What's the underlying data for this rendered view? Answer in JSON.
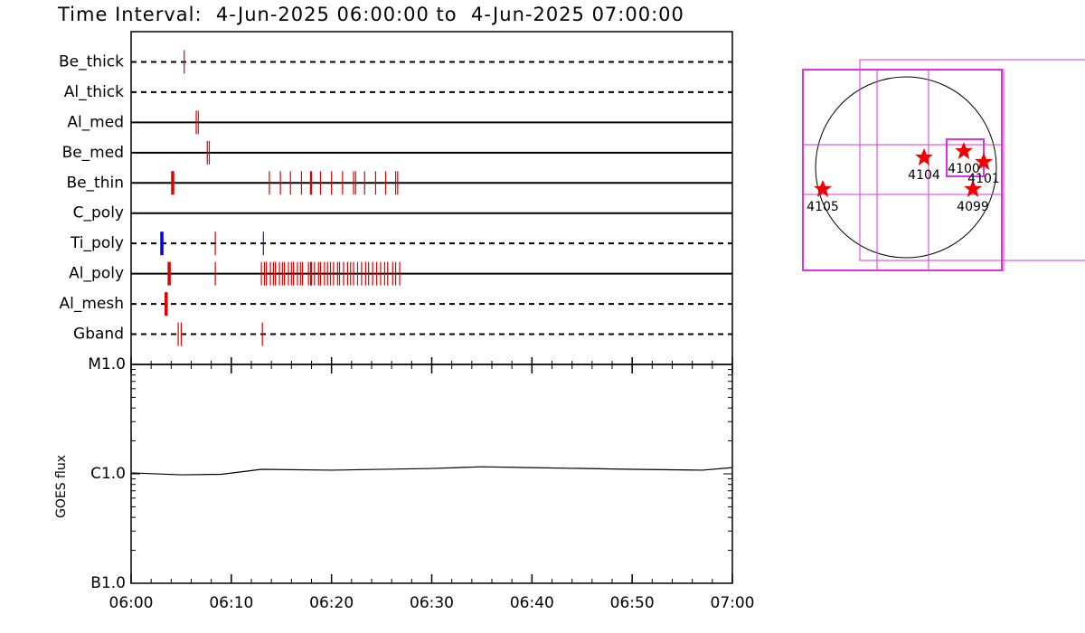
{
  "chart_data": [
    {
      "type": "event",
      "title": "Time Interval:  4-Jun-2025 06:00:00 to  4-Jun-2025 07:00:00",
      "xlim": [
        0,
        60
      ],
      "rows": [
        {
          "name": "Be_thick",
          "dashed": true,
          "color": "#e00000",
          "events": [
            5.3
          ]
        },
        {
          "name": "Al_thick",
          "dashed": true,
          "color": "#e00000",
          "events": []
        },
        {
          "name": "Al_med",
          "dashed": false,
          "color": "#e00000",
          "events": [
            6.5,
            6.7
          ]
        },
        {
          "name": "Be_med",
          "dashed": false,
          "color": "#e00000",
          "events": [
            7.6,
            7.8
          ]
        },
        {
          "name": "Be_thin",
          "dashed": false,
          "color": "#e00000",
          "events": [
            {
              "t": 4.15,
              "bold": true
            },
            13.8,
            14.9,
            15.9,
            17.0,
            17.9,
            18.0,
            18.9,
            20.0,
            21.1,
            22.2,
            22.4,
            23.3,
            24.4,
            25.4,
            26.4,
            26.6
          ]
        },
        {
          "name": "C_poly",
          "dashed": false,
          "color": "#e00000",
          "events": []
        },
        {
          "name": "Ti_poly",
          "dashed": true,
          "color": "#e00000",
          "events": [
            {
              "t": 3.07,
              "bold": true,
              "color": "#0000e0"
            },
            8.4,
            {
              "t": 13.2,
              "color": "#202080"
            }
          ]
        },
        {
          "name": "Al_poly",
          "dashed": false,
          "color": "#e00000",
          "events": [
            {
              "t": 3.8,
              "bold": true
            },
            8.4,
            13.0,
            13.3,
            13.5,
            13.9,
            14.2,
            14.4,
            14.8,
            15.1,
            15.3,
            15.7,
            16.0,
            16.2,
            16.6,
            16.9,
            17.1,
            17.7,
            17.9,
            18.0,
            18.3,
            18.7,
            18.9,
            19.3,
            19.6,
            19.9,
            20.2,
            20.6,
            20.8,
            21.2,
            21.6,
            21.9,
            22.2,
            22.6,
            23.0,
            23.4,
            23.7,
            24.1,
            24.5,
            24.9,
            25.3,
            25.6,
            26.1,
            26.4,
            26.8
          ]
        },
        {
          "name": "Al_mesh",
          "dashed": true,
          "color": "#e00000",
          "events": [
            {
              "t": 3.5,
              "bold": true
            }
          ]
        },
        {
          "name": "Gband",
          "dashed": true,
          "color": "#e00000",
          "events": [
            4.7,
            5.0,
            13.1
          ]
        }
      ]
    },
    {
      "type": "line",
      "ylabel": "GOES flux",
      "log_scale": true,
      "color": "#000000",
      "xlim": [
        0,
        60
      ],
      "xticks": [
        {
          "value": 0,
          "label": "06:00"
        },
        {
          "value": 10,
          "label": "06:10"
        },
        {
          "value": 20,
          "label": "06:20"
        },
        {
          "value": 30,
          "label": "06:30"
        },
        {
          "value": 40,
          "label": "06:40"
        },
        {
          "value": 50,
          "label": "06:50"
        },
        {
          "value": 60,
          "label": "07:00"
        }
      ],
      "ylim": [
        1e-07,
        1e-05
      ],
      "yticks": [
        {
          "value": 1e-07,
          "label": "B1.0"
        },
        {
          "value": 1e-06,
          "label": "C1.0"
        },
        {
          "value": 1e-05,
          "label": "M1.0"
        }
      ],
      "x": [
        0,
        5,
        9,
        13,
        20,
        30,
        35,
        40,
        50,
        57,
        60
      ],
      "values": [
        1.02e-06,
        9.8e-07,
        9.9e-07,
        1.1e-06,
        1.08e-06,
        1.12e-06,
        1.16e-06,
        1.14e-06,
        1.1e-06,
        1.08e-06,
        1.14e-06
      ]
    }
  ],
  "map": {
    "regions": [
      "4104",
      "4100",
      "4101",
      "4099",
      "4105"
    ]
  }
}
